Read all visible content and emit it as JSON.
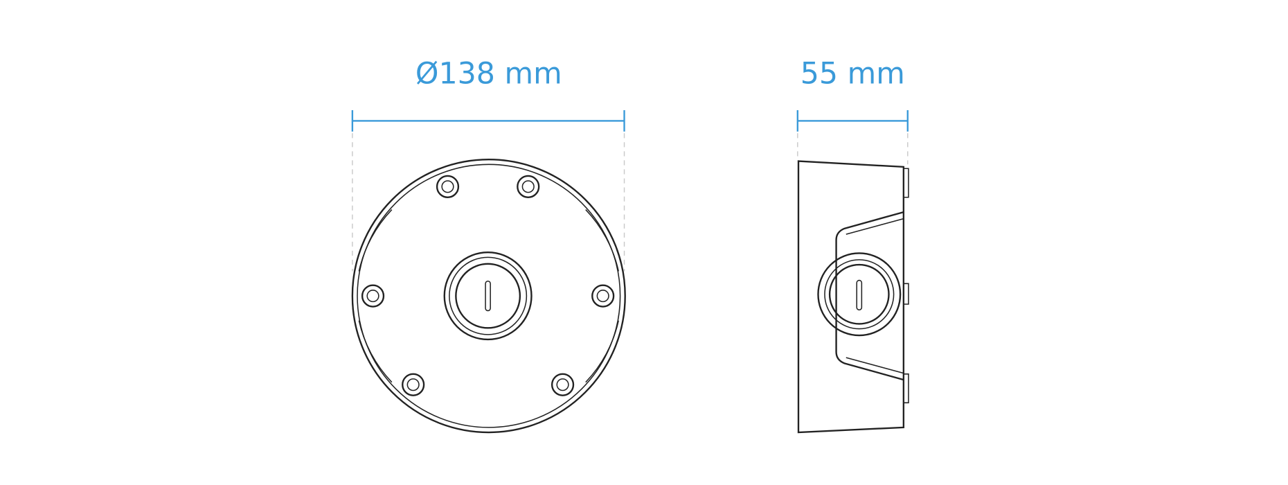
{
  "dimensions": [
    {
      "label": "Ø138 mm"
    },
    {
      "label": "55 mm"
    }
  ]
}
